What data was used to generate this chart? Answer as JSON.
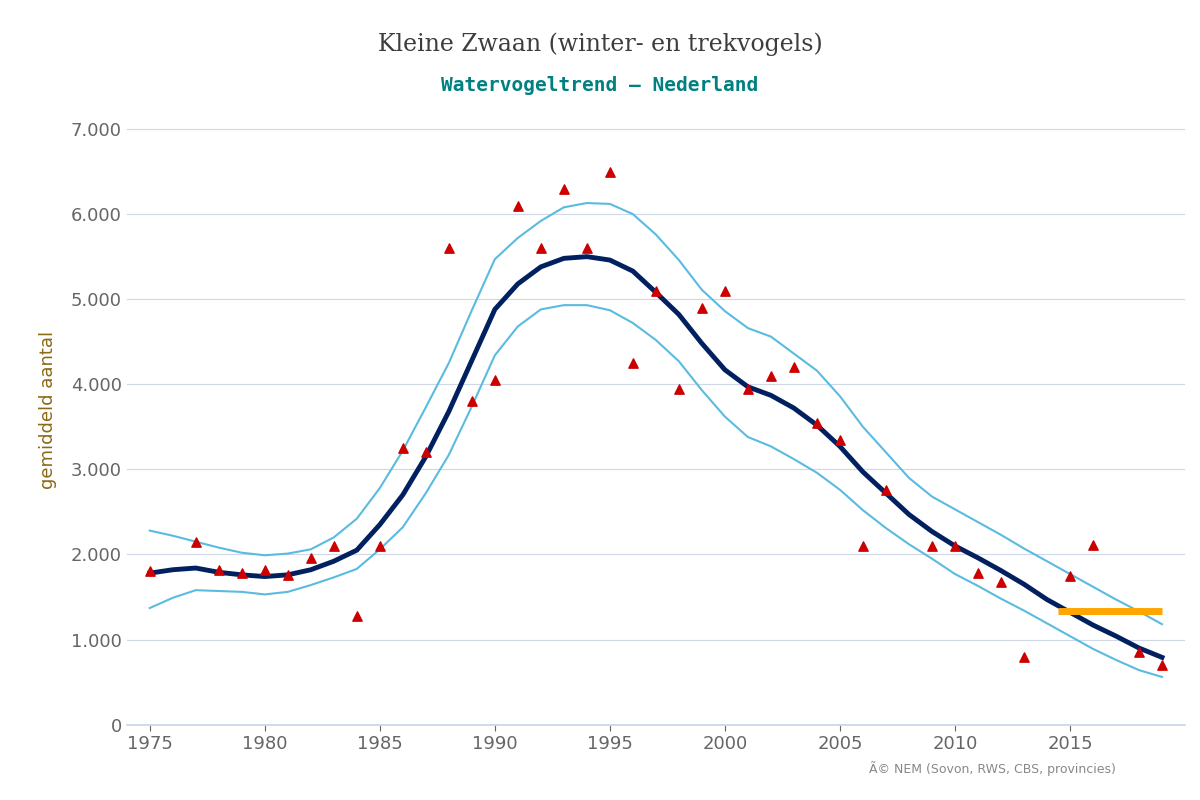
{
  "title": "Kleine Zwaan (winter- en trekvogels)",
  "subtitle": "Watervogeltrend – Nederland",
  "ylabel": "gemiddeld aantal",
  "ylabel_color": "#8B6914",
  "title_color": "#3d3d3d",
  "subtitle_color": "#008080",
  "copyright_text": "Ã© NEM (Sovon, RWS, CBS, provincies)",
  "background_color": "#ffffff",
  "ylim": [
    0,
    7400
  ],
  "yticks": [
    0,
    1000,
    2000,
    3000,
    4000,
    5000,
    6000,
    7000
  ],
  "xlim": [
    1974,
    2020
  ],
  "xticks": [
    1975,
    1980,
    1985,
    1990,
    1995,
    2000,
    2005,
    2010,
    2015
  ],
  "trend_years": [
    1975,
    1976,
    1977,
    1978,
    1979,
    1980,
    1981,
    1982,
    1983,
    1984,
    1985,
    1986,
    1987,
    1988,
    1989,
    1990,
    1991,
    1992,
    1993,
    1994,
    1995,
    1996,
    1997,
    1998,
    1999,
    2000,
    2001,
    2002,
    2003,
    2004,
    2005,
    2006,
    2007,
    2008,
    2009,
    2010,
    2011,
    2012,
    2013,
    2014,
    2015,
    2016,
    2017,
    2018,
    2019
  ],
  "trend_main": [
    1780,
    1820,
    1840,
    1790,
    1760,
    1740,
    1760,
    1820,
    1920,
    2050,
    2350,
    2700,
    3150,
    3680,
    4280,
    4880,
    5180,
    5380,
    5480,
    5500,
    5460,
    5330,
    5080,
    4820,
    4480,
    4170,
    3970,
    3870,
    3720,
    3520,
    3270,
    2970,
    2720,
    2470,
    2270,
    2100,
    1960,
    1810,
    1650,
    1470,
    1320,
    1170,
    1040,
    900,
    790
  ],
  "trend_upper": [
    2280,
    2220,
    2150,
    2080,
    2020,
    1990,
    2010,
    2060,
    2200,
    2420,
    2780,
    3220,
    3730,
    4250,
    4870,
    5470,
    5720,
    5920,
    6080,
    6130,
    6120,
    6000,
    5760,
    5460,
    5110,
    4860,
    4660,
    4560,
    4360,
    4160,
    3860,
    3500,
    3200,
    2900,
    2680,
    2530,
    2380,
    2230,
    2070,
    1920,
    1770,
    1620,
    1470,
    1330,
    1180
  ],
  "trend_lower": [
    1370,
    1490,
    1580,
    1570,
    1560,
    1530,
    1560,
    1640,
    1730,
    1830,
    2060,
    2320,
    2720,
    3170,
    3740,
    4340,
    4680,
    4880,
    4930,
    4930,
    4870,
    4720,
    4520,
    4270,
    3930,
    3620,
    3380,
    3270,
    3120,
    2960,
    2760,
    2520,
    2310,
    2120,
    1950,
    1770,
    1630,
    1480,
    1340,
    1190,
    1040,
    890,
    760,
    640,
    560
  ],
  "data_years": [
    1975,
    1977,
    1978,
    1979,
    1980,
    1981,
    1982,
    1983,
    1984,
    1985,
    1986,
    1987,
    1988,
    1989,
    1990,
    1991,
    1992,
    1993,
    1994,
    1995,
    1996,
    1997,
    1998,
    1999,
    2000,
    2001,
    2002,
    2003,
    2004,
    2005,
    2006,
    2007,
    2009,
    2010,
    2011,
    2012,
    2013,
    2015,
    2016,
    2018,
    2019
  ],
  "data_values": [
    1800,
    2150,
    1820,
    1780,
    1820,
    1760,
    1960,
    2100,
    1280,
    2100,
    3250,
    3200,
    5600,
    3800,
    4050,
    6100,
    5600,
    6300,
    5600,
    6500,
    4250,
    5100,
    3950,
    4900,
    5100,
    3950,
    4100,
    4200,
    3550,
    3350,
    2100,
    2760,
    2100,
    2100,
    1780,
    1680,
    800,
    1750,
    2110,
    850,
    700
  ],
  "orange_line_x": [
    2014.5,
    2019.0
  ],
  "orange_line_y": [
    1330,
    1330
  ],
  "trend_color": "#002060",
  "band_color": "#5abbe0",
  "data_color": "#cc0000",
  "orange_color": "#FFA500",
  "grid_color": "#d0d8e8",
  "axis_color": "#c8d4e8"
}
